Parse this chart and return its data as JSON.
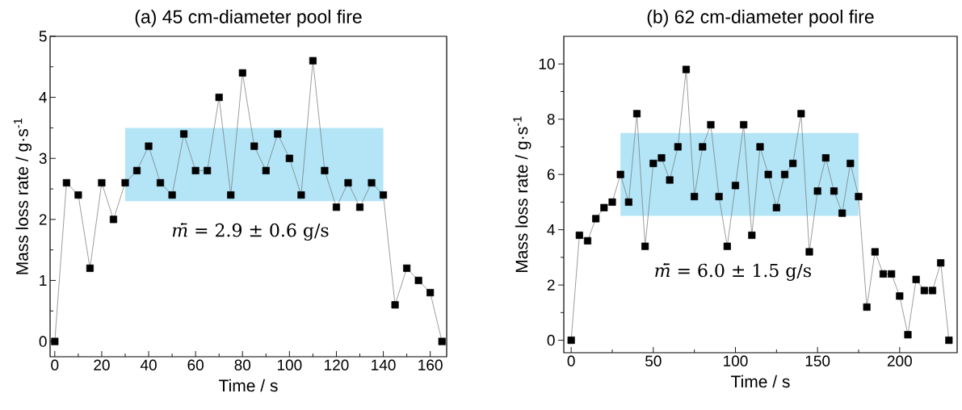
{
  "chart_data": [
    {
      "type": "line",
      "title": "(a) 45 cm-diameter pool fire",
      "xlabel": "Time / s",
      "ylabel": "Mass loss rate / g·s$^{-1}$",
      "x": [
        0,
        5,
        10,
        15,
        20,
        25,
        30,
        35,
        40,
        45,
        50,
        55,
        60,
        65,
        70,
        75,
        80,
        85,
        90,
        95,
        100,
        105,
        110,
        115,
        120,
        125,
        130,
        135,
        140,
        145,
        150,
        155,
        160,
        165
      ],
      "series": [
        {
          "color": "#000000",
          "values": [
            0,
            2.6,
            2.4,
            1.2,
            2.6,
            2.0,
            2.6,
            2.8,
            3.2,
            2.6,
            2.4,
            3.4,
            2.8,
            2.8,
            4.0,
            2.4,
            4.4,
            3.2,
            2.8,
            3.4,
            3.0,
            2.4,
            4.6,
            2.8,
            2.2,
            2.6,
            2.2,
            2.6,
            2.4,
            0.6,
            1.2,
            1.0,
            0.8,
            0
          ]
        }
      ],
      "marker": "square",
      "line_style": "solid",
      "xlim": [
        -2,
        167
      ],
      "ylim": [
        -0.25,
        5
      ],
      "xticks": [
        0,
        20,
        40,
        60,
        80,
        100,
        120,
        140,
        160
      ],
      "yticks": [
        0,
        1,
        2,
        3,
        4,
        5
      ],
      "bands": [
        {
          "axis": "y",
          "from": 2.3,
          "to": 3.5,
          "color": "#b3e5f7"
        }
      ],
      "annotations": [
        "*ṁ̄* = 2.9 ± 0.6 g/s"
      ]
    },
    {
      "type": "line",
      "title": "(b) 62 cm-diameter pool fire",
      "xlabel": "Time / s",
      "ylabel": "Mass loss rate / g·s$^{-1}$",
      "x": [
        0,
        5,
        10,
        15,
        20,
        25,
        30,
        35,
        40,
        45,
        50,
        55,
        60,
        65,
        70,
        75,
        80,
        85,
        90,
        95,
        100,
        105,
        110,
        115,
        120,
        125,
        130,
        135,
        140,
        145,
        150,
        155,
        160,
        165,
        170,
        175,
        180,
        185,
        190,
        195,
        200,
        205,
        210,
        215,
        220,
        225,
        230
      ],
      "series": [
        {
          "color": "#000000",
          "values": [
            0,
            3.8,
            3.6,
            4.4,
            4.8,
            5.0,
            6.0,
            5.0,
            8.2,
            3.4,
            6.4,
            6.6,
            5.8,
            7.0,
            9.8,
            5.2,
            7.0,
            7.8,
            5.2,
            3.4,
            5.6,
            7.8,
            3.8,
            7.0,
            6.0,
            4.8,
            6.0,
            6.4,
            8.2,
            3.2,
            5.4,
            6.6,
            5.4,
            4.6,
            6.4,
            5.2,
            1.2,
            3.2,
            2.4,
            2.4,
            1.6,
            0.2,
            2.2,
            1.8,
            1.8,
            2.8,
            0
          ]
        }
      ],
      "marker": "square",
      "line_style": "solid",
      "xlim": [
        -4.5,
        235
      ],
      "ylim": [
        -0.45,
        11
      ],
      "xticks": [
        0,
        50,
        100,
        150,
        200
      ],
      "yticks": [
        0,
        2,
        4,
        6,
        8,
        10
      ],
      "bands": [
        {
          "axis": "y",
          "from": 4.5,
          "to": 7.5,
          "color": "#b3e5f7"
        }
      ],
      "annotations": [
        "*ṁ̄* = 6.0 ± 1.5 g/s"
      ]
    }
  ]
}
